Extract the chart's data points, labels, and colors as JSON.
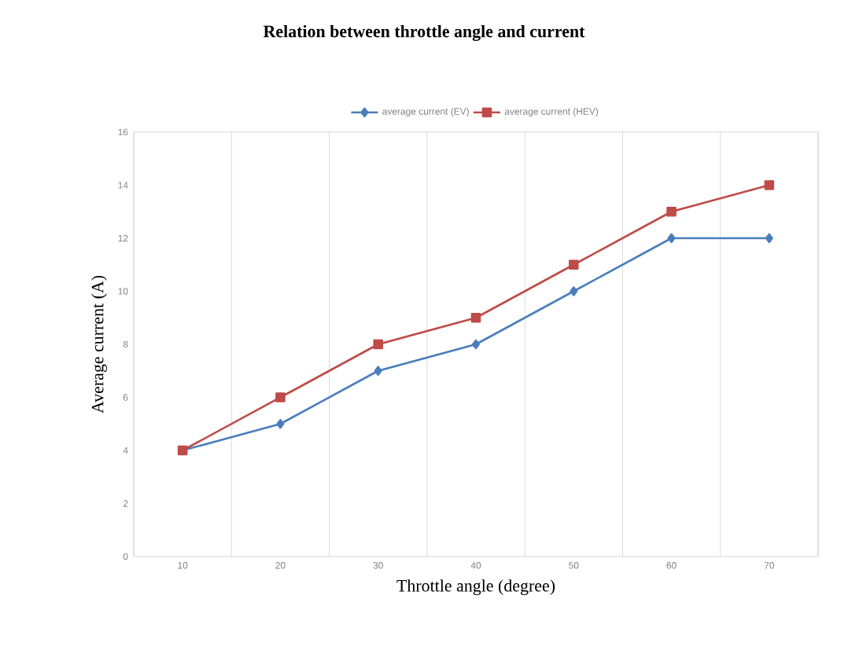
{
  "chart_data": {
    "type": "line",
    "title": "Relation between throttle angle and current",
    "xlabel": "Throttle angle (degree)",
    "ylabel": "Average current (A)",
    "categories": [
      "10",
      "20",
      "30",
      "40",
      "50",
      "60",
      "70"
    ],
    "series": [
      {
        "name": "average current (EV)",
        "color": "#4a7ebb",
        "marker": "diamond",
        "values": [
          4,
          5,
          7,
          8,
          10,
          12,
          12
        ]
      },
      {
        "name": "average current (HEV)",
        "color": "#be4b48",
        "marker": "square",
        "values": [
          4,
          6,
          8,
          9,
          11,
          13,
          14
        ]
      }
    ],
    "ylim": [
      0,
      16
    ],
    "yticks": [
      0,
      2,
      4,
      6,
      8,
      10,
      12,
      14,
      16
    ],
    "grid": "x",
    "legend": "top",
    "line_style": "solid"
  }
}
